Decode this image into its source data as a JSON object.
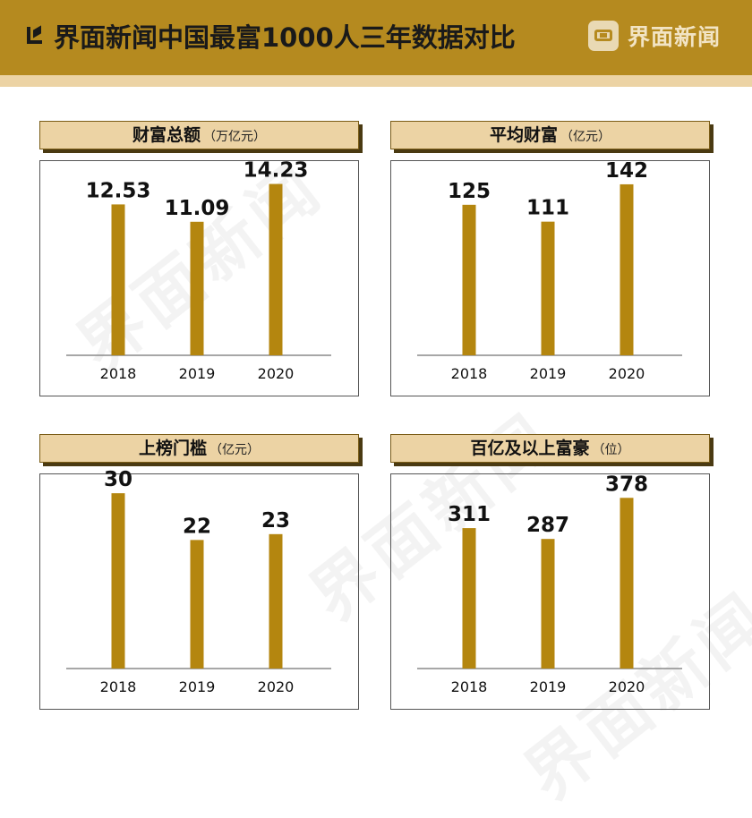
{
  "header": {
    "title": "界面新闻中国最富1000人三年数据对比",
    "brand": "界面新闻"
  },
  "watermark_text": "界面新闻",
  "colors": {
    "header_bg": "#b58a1f",
    "band": "#ecd3a4",
    "bar": "#b4860f"
  },
  "chart_data": [
    {
      "type": "bar",
      "title": "财富总额",
      "unit": "（万亿元）",
      "categories": [
        "2018",
        "2019",
        "2020"
      ],
      "values": [
        12.53,
        11.09,
        14.23
      ],
      "value_labels": [
        "12.53",
        "11.09",
        "14.23"
      ],
      "ylim": [
        0,
        16.5
      ]
    },
    {
      "type": "bar",
      "title": "平均财富",
      "unit": "（亿元）",
      "categories": [
        "2018",
        "2019",
        "2020"
      ],
      "values": [
        125,
        111,
        142
      ],
      "value_labels": [
        "125",
        "111",
        "142"
      ],
      "ylim": [
        0,
        165
      ]
    },
    {
      "type": "bar",
      "title": "上榜门槛",
      "unit": "（亿元）",
      "categories": [
        "2018",
        "2019",
        "2020"
      ],
      "values": [
        30,
        22,
        23
      ],
      "value_labels": [
        "30",
        "22",
        "23"
      ],
      "ylim": [
        0,
        34
      ]
    },
    {
      "type": "bar",
      "title": "百亿及以上富豪",
      "unit": "（位）",
      "categories": [
        "2018",
        "2019",
        "2020"
      ],
      "values": [
        311,
        287,
        378
      ],
      "value_labels": [
        "311",
        "287",
        "378"
      ],
      "ylim": [
        0,
        440
      ]
    }
  ]
}
